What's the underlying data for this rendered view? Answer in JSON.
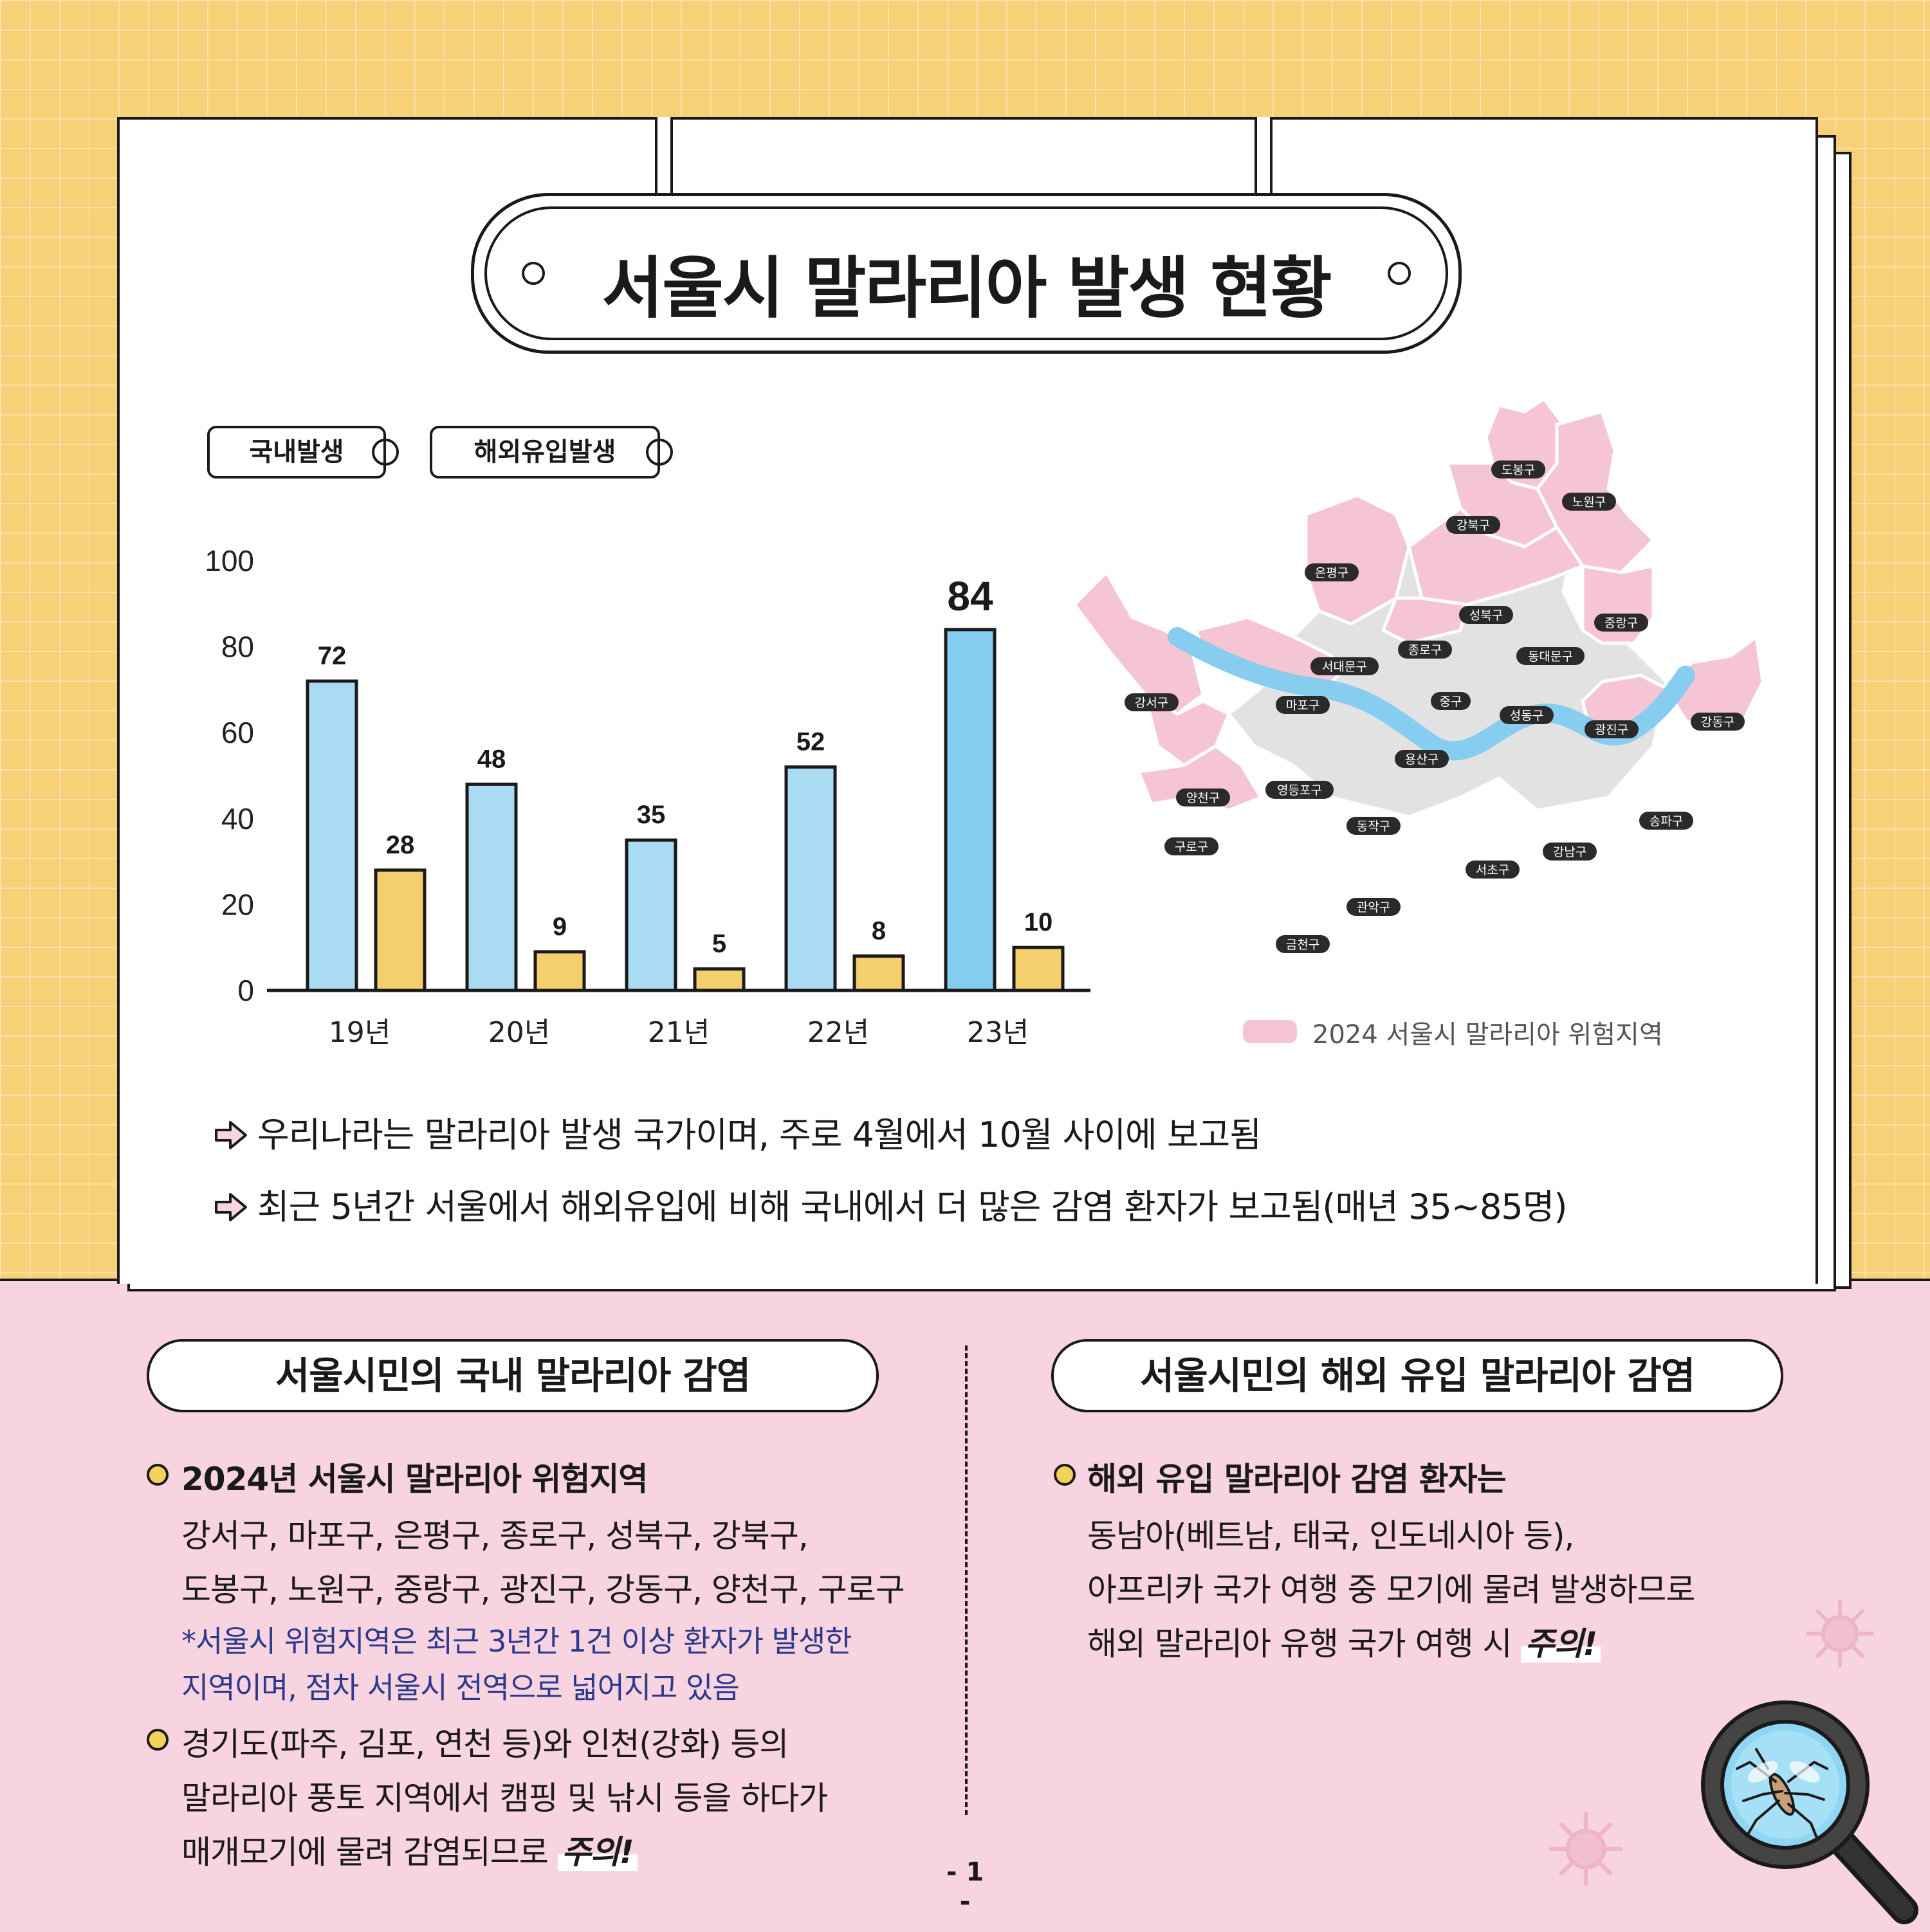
{
  "title": "서울시 말라리아 발생 현황",
  "legend": {
    "domestic": "국내발생",
    "overseas": "해외유입발생"
  },
  "colors": {
    "domestic": "#a9dcf2",
    "domestic_highlight": "#84cdf0",
    "overseas": "#f5cf6e",
    "risk_area": "#f5c5d6",
    "other_area": "#e2e2e2",
    "river": "#86cdf0",
    "page_top": "#f7d077",
    "page_bottom": "#f8d3e0"
  },
  "chart_data": {
    "type": "bar",
    "categories": [
      "19년",
      "20년",
      "21년",
      "22년",
      "23년"
    ],
    "series": [
      {
        "name": "국내발생",
        "values": [
          72,
          48,
          35,
          52,
          84
        ]
      },
      {
        "name": "해외유입발생",
        "values": [
          28,
          9,
          5,
          8,
          10
        ]
      }
    ],
    "yticks": [
      "0",
      "20",
      "40",
      "60",
      "80",
      "100"
    ],
    "ylim": [
      0,
      100
    ],
    "title": "서울시 말라리아 발생 현황",
    "xlabel": "",
    "ylabel": "",
    "legend_position": "top-left",
    "grid": false
  },
  "map": {
    "legend": "2024 서울시 말라리아 위험지역",
    "districts": [
      "도봉구",
      "노원구",
      "강북구",
      "은평구",
      "성북구",
      "중랑구",
      "종로구",
      "서대문구",
      "동대문구",
      "강서구",
      "마포구",
      "중구",
      "성동구",
      "광진구",
      "강동구",
      "용산구",
      "양천구",
      "영등포구",
      "동작구",
      "송파구",
      "구로구",
      "강남구",
      "서초구",
      "관악구",
      "금천구"
    ]
  },
  "notes": [
    "우리나라는 말라리아 발생 국가이며, 주로 4월에서 10월 사이에 보고됨",
    "최근 5년간 서울에서 해외유입에 비해 국내에서 더 많은 감염 환자가 보고됨(매년 35~85명)"
  ],
  "domestic_section": {
    "title": "서울시민의 국내 말라리아 감염",
    "bullet1_title": "2024년 서울시 말라리아 위험지역",
    "bullet1_line1": "강서구, 마포구, 은평구, 종로구, 성북구, 강북구,",
    "bullet1_line2": "도봉구, 노원구, 중랑구, 광진구, 강동구, 양천구, 구로구",
    "bullet1_note1": "*서울시 위험지역은 최근 3년간 1건 이상 환자가 발생한",
    "bullet1_note2": "지역이며, 점차 서울시 전역으로 넓어지고 있음",
    "bullet2_line1": "경기도(파주, 김포, 연천 등)와 인천(강화) 등의",
    "bullet2_line2": "말라리아 풍토 지역에서 캠핑 및 낚시 등을 하다가",
    "bullet2_line3": "매개모기에 물려 감염되므로",
    "bullet2_warn": "주의!"
  },
  "overseas_section": {
    "title": "서울시민의 해외 유입 말라리아 감염",
    "bullet_title": "해외 유입 말라리아 감염 환자는",
    "line1": "동남아(베트남, 태국, 인도네시아 등),",
    "line2": "아프리카 국가 여행 중 모기에 물려 발생하므로",
    "line3": "해외 말라리아 유행 국가 여행 시",
    "warn": "주의!"
  },
  "page_number": "- 1 -"
}
